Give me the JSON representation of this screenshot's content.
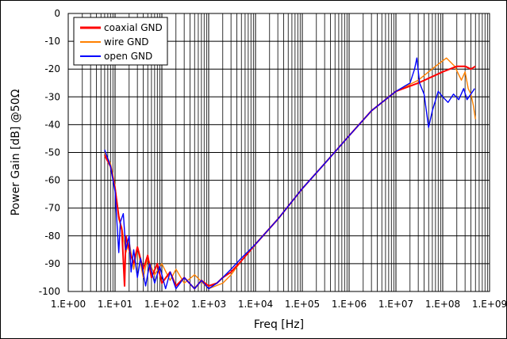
{
  "chart_data": {
    "type": "line",
    "title": "",
    "xlabel": "Freq [Hz]",
    "ylabel": "Power Gain [dB] @50Ω",
    "x_scale": "log",
    "xlim": [
      1,
      1000000000
    ],
    "ylim": [
      -100,
      0
    ],
    "x_tick_labels": [
      "1.E+00",
      "1.E+01",
      "1.E+02",
      "1.E+03",
      "1.E+04",
      "1.E+05",
      "1.E+06",
      "1.E+07",
      "1.E+08",
      "1.E+09"
    ],
    "y_tick_labels": [
      "0",
      "-10",
      "-20",
      "-30",
      "-40",
      "-50",
      "-60",
      "-70",
      "-80",
      "-90",
      "-100"
    ],
    "grid": true,
    "legend_position": "top-left",
    "series": [
      {
        "name": "coaxial GND",
        "color": "#ff0000",
        "points": [
          [
            6,
            -51
          ],
          [
            8,
            -55
          ],
          [
            10,
            -63
          ],
          [
            12,
            -73
          ],
          [
            14,
            -78
          ],
          [
            16,
            -98
          ],
          [
            17,
            -80
          ],
          [
            20,
            -85
          ],
          [
            25,
            -90
          ],
          [
            30,
            -84
          ],
          [
            40,
            -92
          ],
          [
            50,
            -87
          ],
          [
            60,
            -95
          ],
          [
            80,
            -90
          ],
          [
            100,
            -97
          ],
          [
            150,
            -93
          ],
          [
            200,
            -98
          ],
          [
            300,
            -95
          ],
          [
            500,
            -99
          ],
          [
            700,
            -96
          ],
          [
            1000,
            -98
          ],
          [
            1500,
            -97
          ],
          [
            2000,
            -95
          ],
          [
            3000,
            -93
          ],
          [
            5000,
            -89
          ],
          [
            10000,
            -83
          ],
          [
            30000,
            -74
          ],
          [
            100000,
            -63
          ],
          [
            300000,
            -54
          ],
          [
            1000000,
            -44
          ],
          [
            3000000,
            -35
          ],
          [
            10000000,
            -28
          ],
          [
            30000000,
            -25
          ],
          [
            100000000,
            -21
          ],
          [
            200000000,
            -19
          ],
          [
            300000000,
            -19
          ],
          [
            400000000,
            -20
          ],
          [
            500000000,
            -19
          ]
        ]
      },
      {
        "name": "wire GND",
        "color": "#ff8000",
        "points": [
          [
            6,
            -50
          ],
          [
            8,
            -54
          ],
          [
            10,
            -62
          ],
          [
            12,
            -74
          ],
          [
            14,
            -77
          ],
          [
            17,
            -86
          ],
          [
            20,
            -82
          ],
          [
            25,
            -92
          ],
          [
            30,
            -84
          ],
          [
            40,
            -95
          ],
          [
            50,
            -88
          ],
          [
            70,
            -94
          ],
          [
            100,
            -90
          ],
          [
            150,
            -96
          ],
          [
            200,
            -92
          ],
          [
            300,
            -97
          ],
          [
            500,
            -94
          ],
          [
            1000,
            -99
          ],
          [
            2000,
            -97
          ],
          [
            3000,
            -94
          ],
          [
            5000,
            -89
          ],
          [
            10000,
            -83
          ],
          [
            30000,
            -74
          ],
          [
            100000,
            -63
          ],
          [
            300000,
            -54
          ],
          [
            1000000,
            -44
          ],
          [
            3000000,
            -35
          ],
          [
            10000000,
            -28
          ],
          [
            30000000,
            -24
          ],
          [
            70000000,
            -19
          ],
          [
            120000000,
            -16
          ],
          [
            180000000,
            -19
          ],
          [
            250000000,
            -24
          ],
          [
            300000000,
            -21
          ],
          [
            350000000,
            -27
          ],
          [
            400000000,
            -29
          ],
          [
            450000000,
            -33
          ],
          [
            500000000,
            -38
          ]
        ]
      },
      {
        "name": "open GND",
        "color": "#0000ff",
        "points": [
          [
            6,
            -49
          ],
          [
            8,
            -55
          ],
          [
            10,
            -64
          ],
          [
            12,
            -86
          ],
          [
            13,
            -75
          ],
          [
            15,
            -72
          ],
          [
            17,
            -85
          ],
          [
            20,
            -80
          ],
          [
            22,
            -93
          ],
          [
            25,
            -85
          ],
          [
            30,
            -95
          ],
          [
            35,
            -88
          ],
          [
            45,
            -98
          ],
          [
            55,
            -90
          ],
          [
            70,
            -97
          ],
          [
            90,
            -91
          ],
          [
            120,
            -99
          ],
          [
            150,
            -93
          ],
          [
            200,
            -99
          ],
          [
            300,
            -95
          ],
          [
            500,
            -99
          ],
          [
            700,
            -96
          ],
          [
            1000,
            -99
          ],
          [
            1500,
            -97
          ],
          [
            2000,
            -95
          ],
          [
            3000,
            -92
          ],
          [
            5000,
            -88
          ],
          [
            10000,
            -83
          ],
          [
            30000,
            -74
          ],
          [
            100000,
            -63
          ],
          [
            300000,
            -54
          ],
          [
            1000000,
            -44
          ],
          [
            3000000,
            -35
          ],
          [
            10000000,
            -28
          ],
          [
            20000000,
            -25
          ],
          [
            25000000,
            -20
          ],
          [
            28000000,
            -16
          ],
          [
            32000000,
            -25
          ],
          [
            40000000,
            -29
          ],
          [
            50000000,
            -41
          ],
          [
            60000000,
            -35
          ],
          [
            80000000,
            -28
          ],
          [
            100000000,
            -30
          ],
          [
            130000000,
            -32
          ],
          [
            170000000,
            -29
          ],
          [
            220000000,
            -31
          ],
          [
            280000000,
            -27
          ],
          [
            330000000,
            -31
          ],
          [
            400000000,
            -29
          ],
          [
            480000000,
            -27
          ]
        ]
      }
    ]
  }
}
